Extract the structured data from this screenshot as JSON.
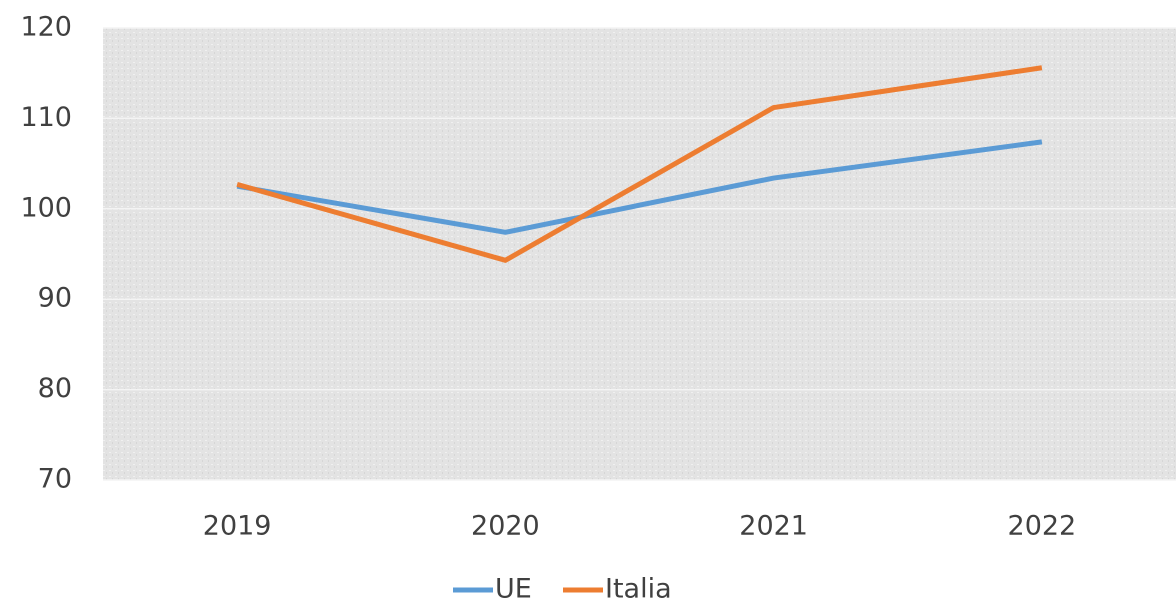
{
  "chart_data": {
    "type": "line",
    "categories": [
      "2019",
      "2020",
      "2021",
      "2022"
    ],
    "series": [
      {
        "name": "UE",
        "color": "#5b9bd5",
        "values": [
          102.5,
          97.4,
          103.4,
          107.4
        ]
      },
      {
        "name": "Italia",
        "color": "#ed7d31",
        "values": [
          102.7,
          94.3,
          111.2,
          115.6
        ]
      }
    ],
    "ylim": [
      70,
      120
    ],
    "yticks": [
      70,
      80,
      90,
      100,
      110,
      120
    ],
    "grid": true,
    "legend": "bottom"
  }
}
